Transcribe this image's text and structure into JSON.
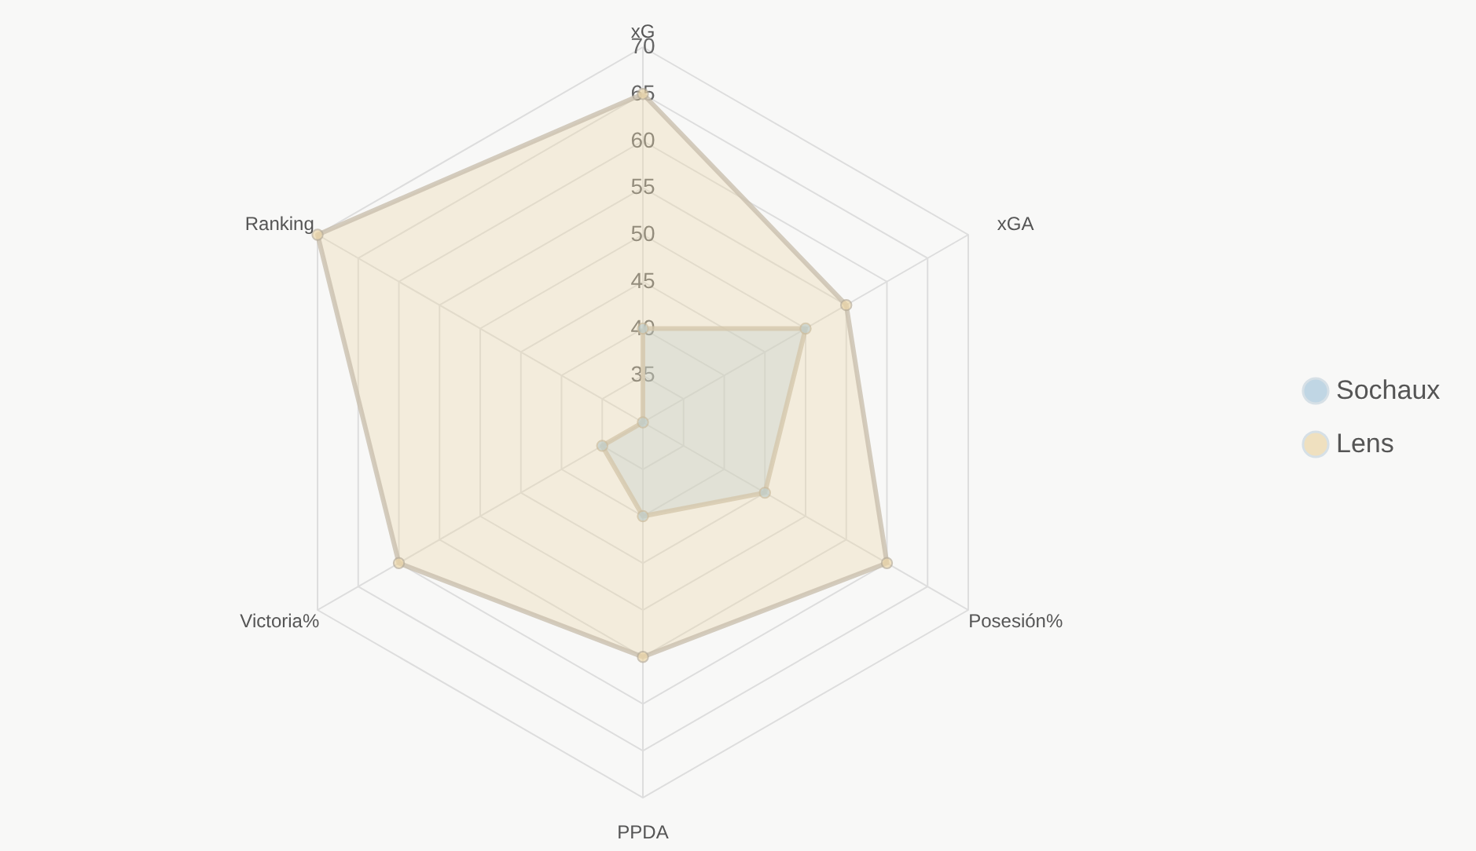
{
  "chart_data": {
    "type": "radar",
    "categories": [
      "xG",
      "xGA",
      "Posesión%",
      "PPDA",
      "Victoria%",
      "Ranking"
    ],
    "ylim": [
      30,
      70
    ],
    "yticks": [
      35,
      40,
      45,
      50,
      55,
      60,
      65,
      70
    ],
    "grid": true,
    "legend": "right",
    "marker": "circle",
    "series": [
      {
        "name": "Sochaux",
        "color": "#a9c9dc",
        "values": [
          40,
          50,
          45,
          40,
          35,
          30
        ]
      },
      {
        "name": "Lens",
        "color": "#ecd6a8",
        "values": [
          65,
          55,
          60,
          55,
          60,
          70
        ]
      }
    ]
  }
}
